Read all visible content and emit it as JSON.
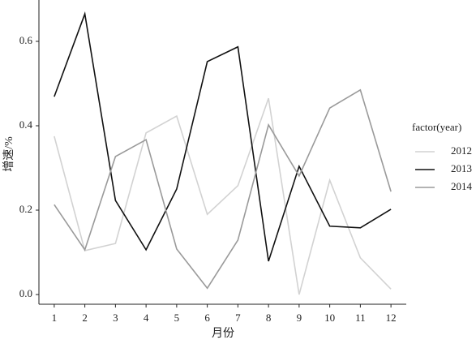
{
  "chart_data": {
    "type": "line",
    "x_label": "月份",
    "y_label": "增速/%",
    "legend_title": "factor(year)",
    "x": [
      1,
      2,
      3,
      4,
      5,
      6,
      7,
      8,
      9,
      10,
      11,
      12
    ],
    "xlim": [
      0.5,
      12.5
    ],
    "xticks": [
      1,
      2,
      3,
      4,
      5,
      6,
      7,
      8,
      9,
      10,
      11,
      12
    ],
    "ylim": [
      -0.023,
      0.698
    ],
    "yticks": [
      {
        "value": 0,
        "label": "0.0"
      },
      0.2,
      0.4,
      0.6
    ],
    "grid": false,
    "legend": "right",
    "series": [
      {
        "name": "2012",
        "color": "#d2d2d2",
        "values": [
          0.375,
          0.104,
          0.121,
          0.383,
          0.423,
          0.19,
          0.258,
          0.465,
          0.0,
          0.271,
          0.087,
          0.013
        ]
      },
      {
        "name": "2013",
        "color": "#111111",
        "values": [
          0.469,
          0.665,
          0.223,
          0.106,
          0.25,
          0.552,
          0.587,
          0.079,
          0.304,
          0.162,
          0.158,
          0.202
        ]
      },
      {
        "name": "2014",
        "color": "#9a9a9a",
        "values": [
          0.213,
          0.106,
          0.327,
          0.367,
          0.108,
          0.015,
          0.129,
          0.402,
          0.281,
          0.442,
          0.485,
          0.244
        ]
      }
    ]
  }
}
